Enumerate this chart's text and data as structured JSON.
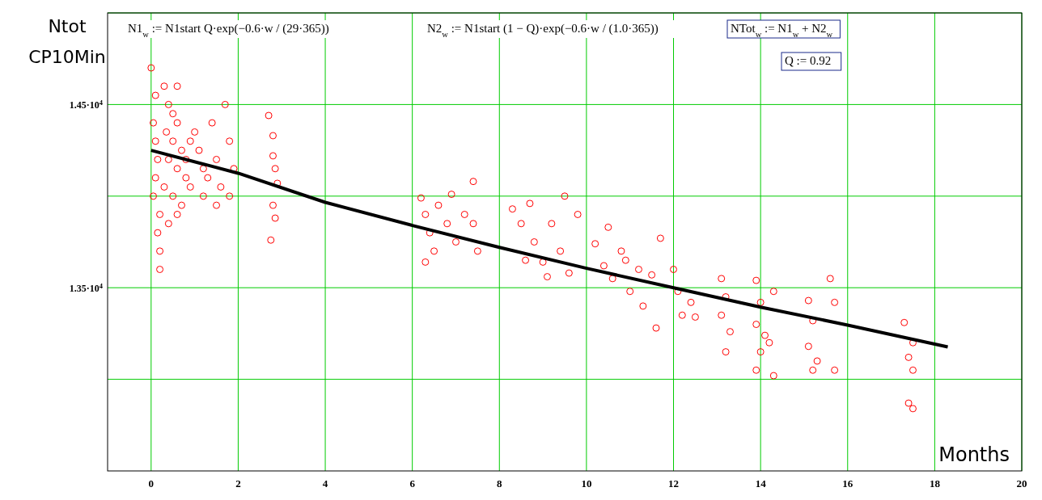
{
  "chart_data": {
    "type": "scatter",
    "xlabel": "Months",
    "ylabel": "Ntot\nCP10Min",
    "xlim": [
      -1,
      20
    ],
    "ylim": [
      12500,
      15000
    ],
    "xticks": [
      0,
      2,
      4,
      6,
      8,
      10,
      12,
      14,
      16,
      18,
      20
    ],
    "yticks": [
      {
        "value": 13000,
        "label": null
      },
      {
        "value": 13500,
        "label": "1.35·10$^{4}$"
      },
      {
        "value": 14000,
        "label": null
      },
      {
        "value": 14500,
        "label": "1.45·10$^{4}$"
      },
      {
        "value": 15000,
        "label": null
      }
    ],
    "grid": true,
    "annotations": [
      "N1$_{w}$ := N1start Q·exp(−0.6·w / (29·365))",
      "N2$_{w}$ := N1start (1 − Q)·exp(−0.6·w / (1.0·365))",
      "NTot$_{w}$ := N1$_{w}$ + N2$_{w}$",
      "Q := 0.92"
    ],
    "series": [
      {
        "marker": "circle",
        "color": "#ff0000",
        "x": [
          0,
          0.1,
          0.05,
          0.1,
          0.15,
          0.1,
          0.05,
          0.2,
          0.15,
          0.2,
          0.2,
          0.3,
          0.4,
          0.5,
          0.6,
          0.35,
          0.5,
          0.7,
          0.4,
          0.6,
          0.8,
          0.3,
          0.5,
          0.7,
          0.9,
          0.6,
          0.4,
          0.8,
          0.9,
          0.6,
          1.0,
          1.1,
          1.2,
          1.3,
          1.4,
          1.5,
          1.6,
          1.7,
          1.8,
          1.9,
          1.2,
          1.5,
          1.8,
          2.7,
          2.8,
          2.8,
          2.85,
          2.9,
          2.8,
          2.85,
          2.75,
          6.2,
          6.3,
          6.4,
          6.5,
          6.3,
          6.6,
          6.8,
          7.0,
          7.2,
          7.4,
          7.5,
          6.9,
          7.4,
          8.3,
          8.5,
          8.7,
          8.8,
          9.0,
          9.2,
          9.4,
          9.5,
          9.6,
          9.8,
          8.6,
          9.1,
          10.2,
          10.4,
          10.5,
          10.6,
          10.8,
          11.0,
          11.2,
          11.3,
          11.5,
          11.7,
          11.6,
          10.9,
          12.0,
          12.1,
          12.2,
          12.4,
          12.5,
          13.1,
          13.2,
          13.1,
          13.3,
          13.2,
          13.9,
          14.0,
          13.9,
          14.1,
          14.0,
          13.9,
          14.3,
          14.2,
          14.3,
          15.1,
          15.2,
          15.1,
          15.3,
          15.2,
          15.6,
          15.7,
          15.7,
          17.3,
          17.5,
          17.4,
          17.5,
          17.4,
          17.5
        ],
        "values": [
          14700,
          14550,
          14400,
          14300,
          14200,
          14100,
          14000,
          13900,
          13800,
          13700,
          13600,
          14600,
          14500,
          14450,
          14400,
          14350,
          14300,
          14250,
          14200,
          14150,
          14100,
          14050,
          14000,
          13950,
          14050,
          13900,
          13850,
          14200,
          14300,
          14600,
          14350,
          14250,
          14150,
          14100,
          14400,
          14200,
          14050,
          14500,
          14300,
          14150,
          14000,
          13950,
          14000,
          14440,
          14330,
          14220,
          14150,
          14070,
          13950,
          13880,
          13760,
          13990,
          13900,
          13800,
          13700,
          13640,
          13950,
          13850,
          13750,
          13900,
          14080,
          13700,
          14010,
          13850,
          13930,
          13850,
          13960,
          13750,
          13640,
          13850,
          13700,
          14000,
          13580,
          13900,
          13650,
          13560,
          13740,
          13620,
          13830,
          13550,
          13700,
          13480,
          13600,
          13400,
          13570,
          13770,
          13280,
          13650,
          13600,
          13480,
          13350,
          13420,
          13340,
          13550,
          13450,
          13350,
          13260,
          13150,
          13540,
          13420,
          13300,
          13240,
          13150,
          13050,
          13480,
          13200,
          13020,
          13430,
          13320,
          13180,
          13100,
          13050,
          13550,
          13420,
          13050,
          13310,
          13200,
          13120,
          13050,
          12870,
          12840
        ]
      },
      {
        "type": "line",
        "marker": "none",
        "color": "#000000",
        "x": [
          0,
          2,
          4,
          6,
          8,
          10,
          12,
          14,
          16,
          18.3
        ],
        "values": [
          14250,
          14125,
          13966,
          13840,
          13720,
          13606,
          13500,
          13394,
          13296,
          13177
        ]
      }
    ]
  }
}
